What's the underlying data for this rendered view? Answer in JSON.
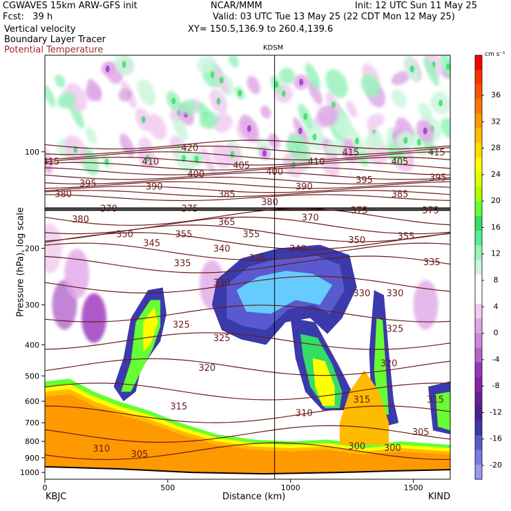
{
  "header": {
    "line1_left": "CGWAVES 15km ARW-GFS init",
    "line1_mid": "NCAR/MMM",
    "line1_right": "Init: 12 UTC Sun 11 May 25",
    "line2_left": "Fcst:   39 h",
    "line2_right": "Valid: 03 UTC Tue 13 May 25 (22 CDT Mon 12 May 25)",
    "line3_left": "Vertical velocity",
    "line3_right": "XY= 150.5,136.9 to 260.4,139.6",
    "line4_left": "Boundary Layer Tracer",
    "line5_left": "Potential Temperature"
  },
  "colors": {
    "theta": "#6b1a1a",
    "text_red": "#a0282d"
  },
  "chart_data": {
    "type": "heatmap",
    "xlabel": "Distance (km)",
    "ylabel": "Pressure (hPa), log scale",
    "xlim": [
      0,
      1650
    ],
    "ylim": [
      1050,
      50
    ],
    "y_log": true,
    "x_ticks": [
      0,
      500,
      1000,
      1500
    ],
    "y_ticks": [
      100,
      200,
      300,
      400,
      500,
      600,
      700,
      800,
      900,
      1000
    ],
    "left_station": "KBJC",
    "right_station": "KIND",
    "marker_station": "KDSM",
    "marker_x": 935,
    "colorbar": {
      "units": "cm s⁻¹",
      "tick_labels": [
        "36",
        "32",
        "28",
        "24",
        "20",
        "16",
        "12",
        "8",
        "4",
        "0",
        "-4",
        "-8",
        "-12",
        "-16",
        "-20"
      ],
      "colors": [
        "#ff0000",
        "#ff3300",
        "#ff5500",
        "#ff7700",
        "#ff9900",
        "#ffbb00",
        "#ffdd00",
        "#ffff00",
        "#ddff00",
        "#aaff00",
        "#66ff33",
        "#33dd66",
        "#55ee99",
        "#99f2bb",
        "#ccf6dd",
        "#ffffff",
        "#ffffff",
        "#f0ccf0",
        "#e0a8e8",
        "#cc88dd",
        "#b366cc",
        "#9933bb",
        "#8822aa",
        "#6a1d99",
        "#4a2288",
        "#3a3aaa",
        "#5a5ad0",
        "#7a7ae8",
        "#9a9af2"
      ]
    },
    "theta_labels": [
      {
        "text": "415",
        "x": 25,
        "p": 107
      },
      {
        "text": "410",
        "x": 430,
        "p": 107
      },
      {
        "text": "420",
        "x": 590,
        "p": 97
      },
      {
        "text": "405",
        "x": 800,
        "p": 110
      },
      {
        "text": "400",
        "x": 935,
        "p": 115
      },
      {
        "text": "410",
        "x": 1105,
        "p": 107
      },
      {
        "text": "415",
        "x": 1245,
        "p": 100
      },
      {
        "text": "405",
        "x": 1445,
        "p": 107
      },
      {
        "text": "415",
        "x": 1595,
        "p": 100
      },
      {
        "text": "380",
        "x": 75,
        "p": 135
      },
      {
        "text": "395",
        "x": 175,
        "p": 125
      },
      {
        "text": "390",
        "x": 445,
        "p": 128
      },
      {
        "text": "400",
        "x": 615,
        "p": 117
      },
      {
        "text": "385",
        "x": 740,
        "p": 135
      },
      {
        "text": "390",
        "x": 1055,
        "p": 128
      },
      {
        "text": "395",
        "x": 1300,
        "p": 122
      },
      {
        "text": "385",
        "x": 1445,
        "p": 135
      },
      {
        "text": "395",
        "x": 1600,
        "p": 120
      },
      {
        "text": "370",
        "x": 260,
        "p": 150
      },
      {
        "text": "375",
        "x": 590,
        "p": 150
      },
      {
        "text": "380",
        "x": 915,
        "p": 143
      },
      {
        "text": "375",
        "x": 1280,
        "p": 152
      },
      {
        "text": "375",
        "x": 1570,
        "p": 152
      },
      {
        "text": "380",
        "x": 145,
        "p": 162
      },
      {
        "text": "365",
        "x": 740,
        "p": 165
      },
      {
        "text": "370",
        "x": 1080,
        "p": 160
      },
      {
        "text": "350",
        "x": 325,
        "p": 180
      },
      {
        "text": "355",
        "x": 565,
        "p": 180
      },
      {
        "text": "355",
        "x": 840,
        "p": 180
      },
      {
        "text": "350",
        "x": 1270,
        "p": 188
      },
      {
        "text": "355",
        "x": 1470,
        "p": 183
      },
      {
        "text": "345",
        "x": 435,
        "p": 192
      },
      {
        "text": "340",
        "x": 720,
        "p": 200
      },
      {
        "text": "340",
        "x": 1030,
        "p": 200
      },
      {
        "text": "335",
        "x": 560,
        "p": 222
      },
      {
        "text": "335",
        "x": 865,
        "p": 214
      },
      {
        "text": "335",
        "x": 1575,
        "p": 220
      },
      {
        "text": "330",
        "x": 720,
        "p": 255
      },
      {
        "text": "330",
        "x": 1290,
        "p": 275
      },
      {
        "text": "330",
        "x": 1425,
        "p": 275
      },
      {
        "text": "325",
        "x": 555,
        "p": 345
      },
      {
        "text": "325",
        "x": 720,
        "p": 380
      },
      {
        "text": "325",
        "x": 1425,
        "p": 355
      },
      {
        "text": "320",
        "x": 660,
        "p": 470
      },
      {
        "text": "320",
        "x": 1400,
        "p": 455
      },
      {
        "text": "315",
        "x": 545,
        "p": 620
      },
      {
        "text": "315",
        "x": 1290,
        "p": 590
      },
      {
        "text": "315",
        "x": 1590,
        "p": 590
      },
      {
        "text": "310",
        "x": 1055,
        "p": 650
      },
      {
        "text": "305",
        "x": 1530,
        "p": 745
      },
      {
        "text": "310",
        "x": 230,
        "p": 840
      },
      {
        "text": "305",
        "x": 385,
        "p": 875
      },
      {
        "text": "300",
        "x": 1270,
        "p": 825
      },
      {
        "text": "300",
        "x": 1415,
        "p": 835
      }
    ]
  }
}
